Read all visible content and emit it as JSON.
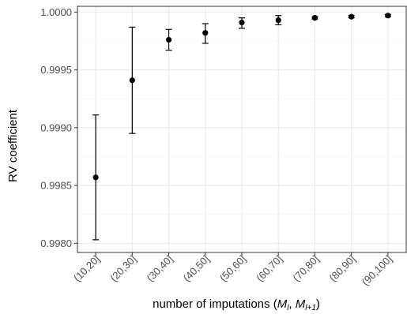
{
  "chart_data": {
    "type": "scatter",
    "error_bars": true,
    "categories": [
      "(10,20]",
      "(20,30]",
      "(30,40]",
      "(40,50]",
      "(50,60]",
      "(60,70]",
      "(70,80]",
      "(80,90]",
      "(90,100]"
    ],
    "series": [
      {
        "values": [
          0.99857,
          0.99941,
          0.99976,
          0.99982,
          0.99991,
          0.99993,
          0.99995,
          0.99996,
          0.99997
        ],
        "lower": [
          0.99803,
          0.99895,
          0.99967,
          0.99973,
          0.99986,
          0.99989,
          0.99994,
          0.99995,
          0.99996
        ],
        "upper": [
          0.99911,
          0.99987,
          0.99985,
          0.9999,
          0.99995,
          0.99997,
          0.99996,
          0.99997,
          0.99998
        ]
      }
    ],
    "ylim": [
      0.99792,
      1.00005
    ],
    "yticks": [
      0.998,
      0.9985,
      0.999,
      0.9995,
      1.0
    ],
    "ytick_labels": [
      "0.9980",
      "0.9985",
      "0.9990",
      "0.9995",
      "1.0000"
    ],
    "ylabel": "RV coefficient",
    "xlabel": {
      "prefix": "number of imputations (",
      "m1": "M",
      "m1_sub": "l",
      "sep": ", ",
      "m2": "M",
      "m2_sub": "l+1",
      "suffix": ")"
    },
    "grid": true,
    "legend": "none",
    "colors": {
      "point": "#000000",
      "grid_major": "#ebebeb",
      "grid_minor": "#f4f4f4",
      "panel_border": "#333333",
      "tick_text": "#4d4d4d"
    }
  }
}
